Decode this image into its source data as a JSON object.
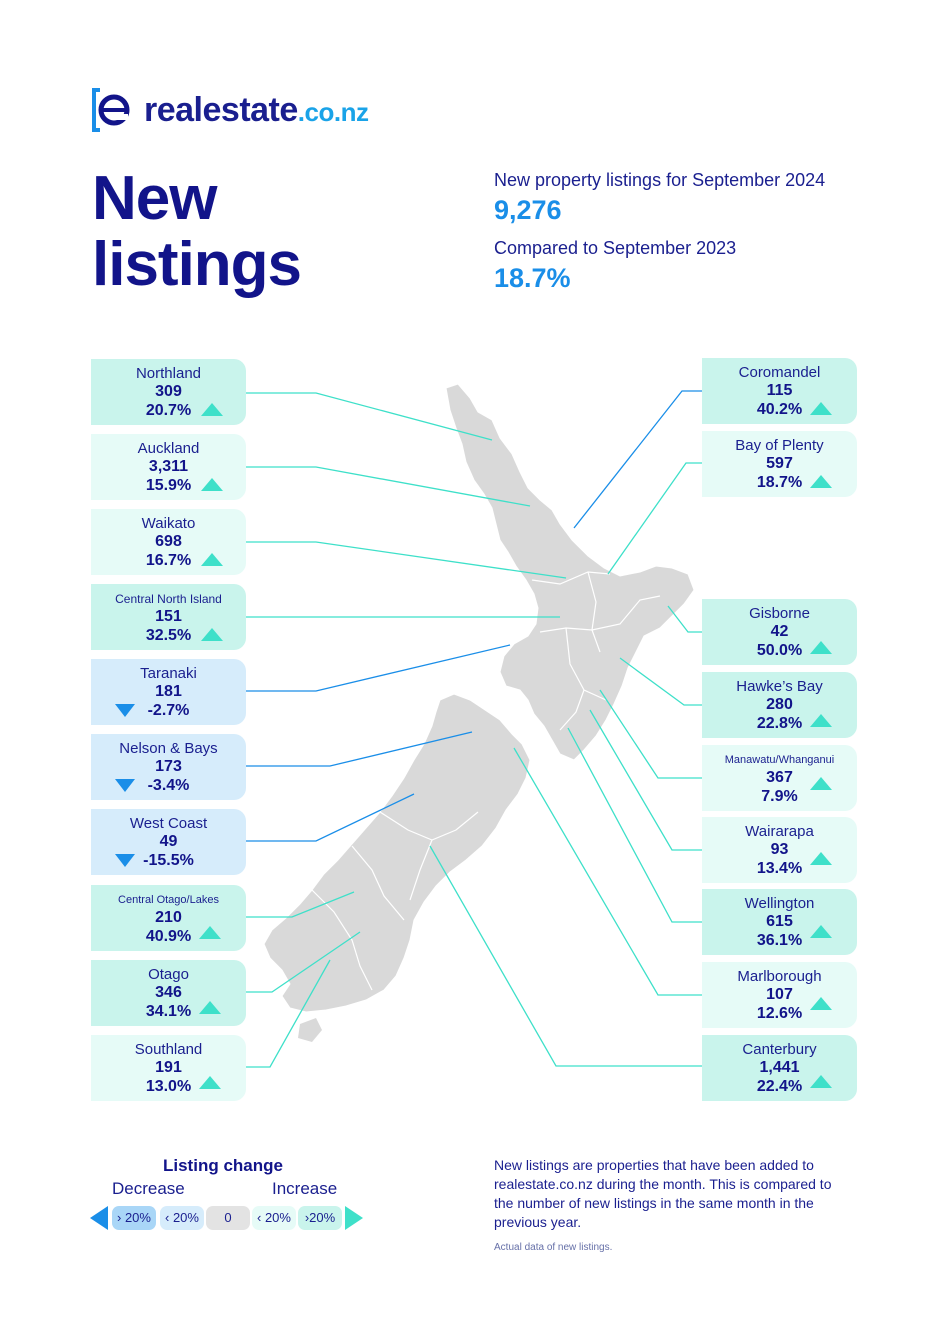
{
  "brand": {
    "name": "realestate",
    "suffix": ".co.nz",
    "logo_letter": "e"
  },
  "title_line1": "New",
  "title_line2": "listings",
  "summary": {
    "label1": "New property listings for September 2024",
    "value1": "9,276",
    "label2": "Compared to September 2023",
    "value2": "18.7%"
  },
  "regions_left": [
    {
      "name": "Northland",
      "count": "309",
      "change": "20.7%",
      "direction": "up"
    },
    {
      "name": "Auckland",
      "count": "3,311",
      "change": "15.9%",
      "direction": "up"
    },
    {
      "name": "Waikato",
      "count": "698",
      "change": "16.7%",
      "direction": "up"
    },
    {
      "name": "Central North Island",
      "count": "151",
      "change": "32.5%",
      "direction": "up"
    },
    {
      "name": "Taranaki",
      "count": "181",
      "change": "-2.7%",
      "direction": "down"
    },
    {
      "name": "Nelson & Bays",
      "count": "173",
      "change": "-3.4%",
      "direction": "down"
    },
    {
      "name": "West Coast",
      "count": "49",
      "change": "-15.5%",
      "direction": "down"
    },
    {
      "name": "Central Otago/Lakes",
      "count": "210",
      "change": "40.9%",
      "direction": "up"
    },
    {
      "name": "Otago",
      "count": "346",
      "change": "34.1%",
      "direction": "up"
    },
    {
      "name": "Southland",
      "count": "191",
      "change": "13.0%",
      "direction": "up"
    }
  ],
  "regions_right": [
    {
      "name": "Coromandel",
      "count": "115",
      "change": "40.2%",
      "direction": "up"
    },
    {
      "name": "Bay of Plenty",
      "count": "597",
      "change": "18.7%",
      "direction": "up"
    },
    {
      "name": "Gisborne",
      "count": "42",
      "change": "50.0%",
      "direction": "up"
    },
    {
      "name": "Hawke’s Bay",
      "count": "280",
      "change": "22.8%",
      "direction": "up"
    },
    {
      "name": "Manawatu/Whanganui",
      "count": "367",
      "change": "7.9%",
      "direction": "up"
    },
    {
      "name": "Wairarapa",
      "count": "93",
      "change": "13.4%",
      "direction": "up"
    },
    {
      "name": "Wellington",
      "count": "615",
      "change": "36.1%",
      "direction": "up"
    },
    {
      "name": "Marlborough",
      "count": "107",
      "change": "12.6%",
      "direction": "up"
    },
    {
      "name": "Canterbury",
      "count": "1,441",
      "change": "22.4%",
      "direction": "up"
    }
  ],
  "legend": {
    "title": "Listing change",
    "decrease": "Decrease",
    "increase": "Increase",
    "pills": [
      "› 20%",
      "‹ 20%",
      "0",
      "‹ 20%",
      "›20%"
    ]
  },
  "colors": {
    "navy": "#12148a",
    "blue": "#1a8ee8",
    "teal": "#3ee0c9",
    "strong_increase": "#c9f4ec",
    "increase": "#e6fbf7",
    "decrease": "#d6ecfb",
    "strong_decrease": "#a9d6f7",
    "map": "#d9d9d9"
  },
  "note": {
    "text": "New listings are properties that have been added to realestate.co.nz during the month. This is compared to the number of new listings in the same month in the previous year.",
    "small": "Actual data of new listings."
  }
}
